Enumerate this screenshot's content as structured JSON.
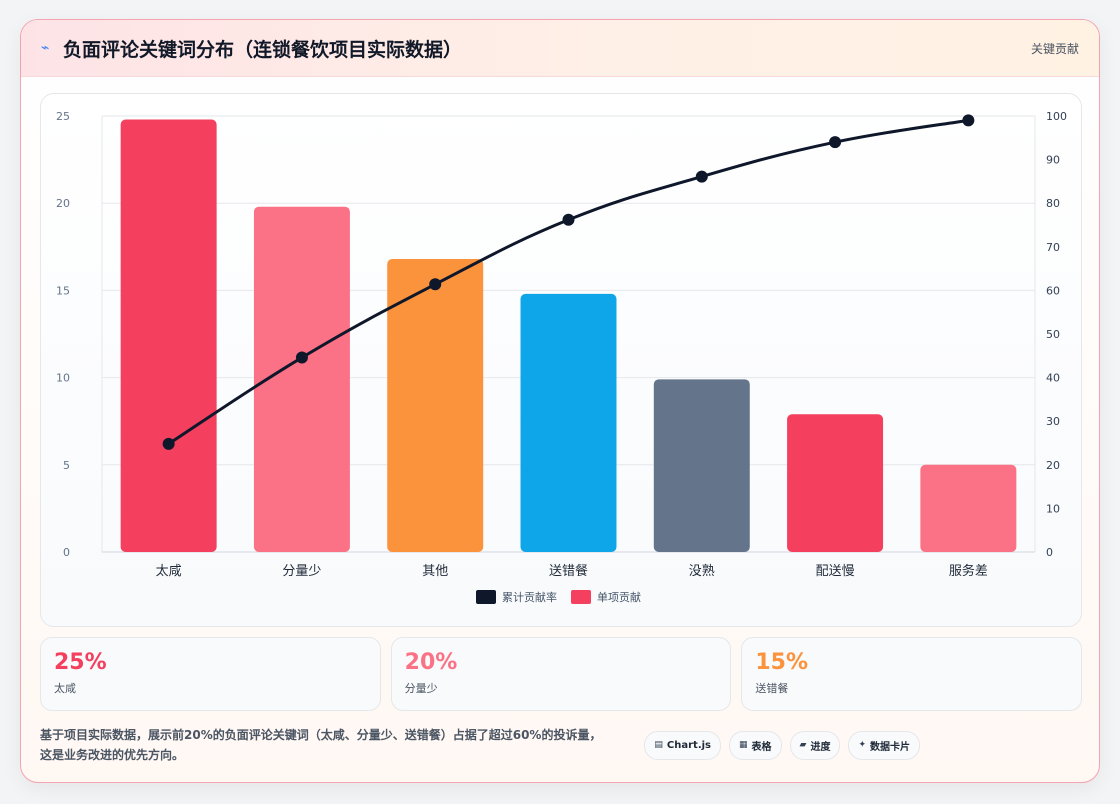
{
  "header": {
    "title_icon": "pulse-icon",
    "title": "负面评论关键词分布（连锁餐饮项目实际数据）",
    "tag": "关键贡献"
  },
  "chart_data": {
    "type": "bar",
    "categories": [
      "太咸",
      "分量少",
      "其他",
      "送错餐",
      "没熟",
      "配送慢",
      "服务差"
    ],
    "series": [
      {
        "name": "单项贡献",
        "type": "bar",
        "axis": "left",
        "values": [
          24.8,
          19.8,
          16.8,
          14.8,
          9.9,
          7.9,
          5.0
        ]
      },
      {
        "name": "累计贡献率",
        "type": "line",
        "axis": "right",
        "values": [
          24.8,
          44.6,
          61.4,
          76.2,
          86.1,
          94.0,
          99.0
        ]
      }
    ],
    "bar_colors": [
      "#f43f5e",
      "#fb7185",
      "#fb923c",
      "#0ea5e9",
      "#64748b",
      "#f43f5e",
      "#fb7185"
    ],
    "line_color": "#0f172a",
    "ylim_left": [
      0,
      25
    ],
    "yticks_left": [
      0,
      5,
      10,
      15,
      20,
      25
    ],
    "ylim_right": [
      0,
      100
    ],
    "yticks_right": [
      0,
      10,
      20,
      30,
      40,
      50,
      60,
      70,
      80,
      90,
      100
    ],
    "grid": true,
    "legend_position": "bottom"
  },
  "stats": [
    {
      "value": "25%",
      "label": "太咸",
      "color": "#f43f5e"
    },
    {
      "value": "20%",
      "label": "分量少",
      "color": "#fb7185"
    },
    {
      "value": "15%",
      "label": "送错餐",
      "color": "#fb923c"
    }
  ],
  "footer": {
    "text": "基于项目实际数据，展示前20%的负面评论关键词（太咸、分量少、送错餐）占据了超过60%的投诉量，这是业务改进的优先方向。",
    "chips": [
      {
        "icon": "▤",
        "label": "Chart.js"
      },
      {
        "icon": "▦",
        "label": "表格"
      },
      {
        "icon": "▰",
        "label": "进度"
      },
      {
        "icon": "✦",
        "label": "数据卡片"
      }
    ]
  }
}
